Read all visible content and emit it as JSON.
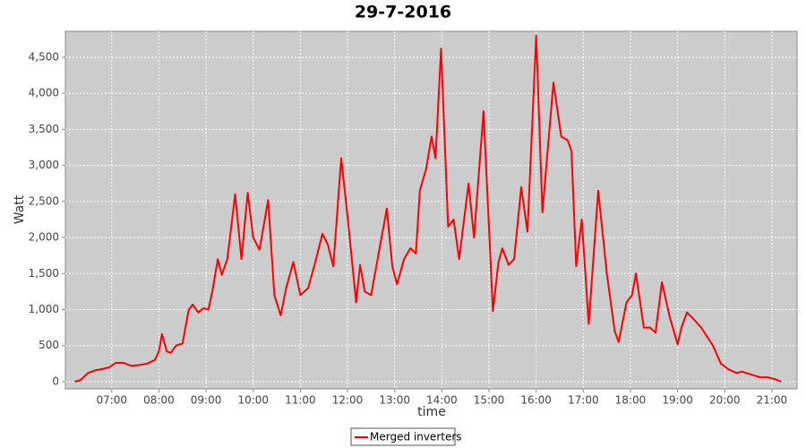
{
  "chart_data": {
    "type": "line",
    "title": "29-7-2016",
    "xlabel": "time",
    "ylabel": "Watt",
    "x": [
      "06:13",
      "06:20",
      "06:30",
      "06:40",
      "06:50",
      "06:57",
      "07:05",
      "07:15",
      "07:25",
      "07:35",
      "07:45",
      "07:55",
      "08:00",
      "08:04",
      "08:10",
      "08:15",
      "08:22",
      "08:30",
      "08:38",
      "08:43",
      "08:50",
      "08:57",
      "09:03",
      "09:08",
      "09:15",
      "09:20",
      "09:27",
      "09:37",
      "09:45",
      "09:53",
      "10:00",
      "10:08",
      "10:19",
      "10:27",
      "10:35",
      "10:42",
      "10:51",
      "11:00",
      "11:10",
      "11:20",
      "11:28",
      "11:35",
      "11:42",
      "11:52",
      "12:00",
      "12:11",
      "12:16",
      "12:22",
      "12:30",
      "12:40",
      "12:50",
      "12:57",
      "13:03",
      "13:12",
      "13:20",
      "13:27",
      "13:32",
      "13:40",
      "13:47",
      "13:52",
      "13:59",
      "14:08",
      "14:15",
      "14:22",
      "14:34",
      "14:41",
      "14:53",
      "15:05",
      "15:12",
      "15:17",
      "15:25",
      "15:32",
      "15:41",
      "15:49",
      "16:00",
      "16:08",
      "16:22",
      "16:32",
      "16:40",
      "16:45",
      "16:51",
      "16:58",
      "17:07",
      "17:19",
      "17:30",
      "17:40",
      "17:45",
      "17:55",
      "18:02",
      "18:07",
      "18:17",
      "18:25",
      "18:32",
      "18:40",
      "18:50",
      "19:00",
      "19:05",
      "19:12",
      "19:22",
      "19:30",
      "19:45",
      "19:55",
      "20:05",
      "20:15",
      "20:22",
      "20:30",
      "20:45",
      "20:55",
      "21:05",
      "21:12"
    ],
    "series": [
      {
        "name": "Merged inverters",
        "color": "#ff0000",
        "values": [
          0,
          20,
          120,
          160,
          180,
          200,
          260,
          260,
          220,
          230,
          250,
          300,
          420,
          660,
          420,
          400,
          500,
          530,
          1000,
          1070,
          960,
          1020,
          1000,
          1250,
          1700,
          1480,
          1700,
          2600,
          1700,
          2620,
          2000,
          1830,
          2520,
          1200,
          920,
          1300,
          1660,
          1200,
          1300,
          1700,
          2050,
          1900,
          1600,
          3100,
          2300,
          1100,
          1620,
          1250,
          1200,
          1800,
          2400,
          1600,
          1350,
          1700,
          1850,
          1780,
          2650,
          2950,
          3400,
          3100,
          4620,
          2150,
          2250,
          1700,
          2750,
          2000,
          3750,
          980,
          1650,
          1850,
          1620,
          1700,
          2700,
          2080,
          4800,
          2350,
          4150,
          3400,
          3350,
          3200,
          1600,
          2250,
          800,
          2650,
          1500,
          700,
          550,
          1100,
          1200,
          1500,
          750,
          750,
          680,
          1380,
          900,
          520,
          750,
          960,
          850,
          750,
          500,
          250,
          170,
          120,
          140,
          110,
          60,
          60,
          30,
          0
        ]
      }
    ],
    "xlim": [
      "06:01",
      "21:32"
    ],
    "xticks": [
      "07:00",
      "08:00",
      "09:00",
      "10:00",
      "11:00",
      "12:00",
      "13:00",
      "14:00",
      "15:00",
      "16:00",
      "17:00",
      "18:00",
      "19:00",
      "20:00",
      "21:00"
    ],
    "ylim": [
      -100,
      4860
    ],
    "yticks": [
      0,
      500,
      {
        "value": 1000,
        "label": "1,000"
      },
      {
        "value": 1500,
        "label": "1,500"
      },
      {
        "value": 2000,
        "label": "2,000"
      },
      {
        "value": 2500,
        "label": "2,500"
      },
      {
        "value": 3000,
        "label": "3,000"
      },
      {
        "value": 3500,
        "label": "3,500"
      },
      {
        "value": 4000,
        "label": "4,000"
      },
      {
        "value": 4500,
        "label": "4,500"
      }
    ],
    "grid": true,
    "legend": "bottom"
  }
}
